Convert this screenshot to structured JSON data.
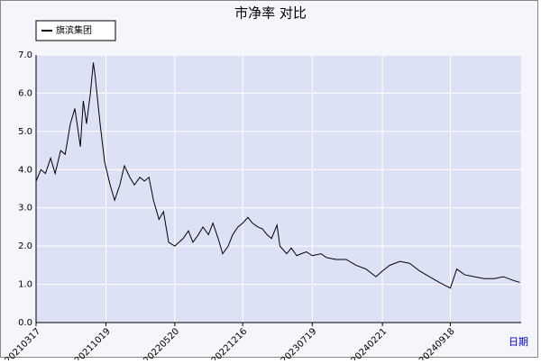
{
  "chart_data": {
    "type": "line",
    "title": "市净率  对比",
    "x_label": "日期",
    "x": [
      "20210317",
      "20210401",
      "20210415",
      "20210501",
      "20210515",
      "20210601",
      "20210615",
      "20210701",
      "20210715",
      "20210801",
      "20210810",
      "20210820",
      "20210901",
      "20210910",
      "20210915",
      "20211001",
      "20211015",
      "20211101",
      "20211115",
      "20211201",
      "20211215",
      "20220101",
      "20220115",
      "20220201",
      "20220215",
      "20220301",
      "20220315",
      "20220401",
      "20220415",
      "20220501",
      "20220520",
      "20220615",
      "20220701",
      "20220715",
      "20220801",
      "20220815",
      "20220901",
      "20220915",
      "20221001",
      "20221015",
      "20221101",
      "20221115",
      "20221201",
      "20221216",
      "20230101",
      "20230115",
      "20230201",
      "20230215",
      "20230301",
      "20230315",
      "20230401",
      "20230410",
      "20230501",
      "20230515",
      "20230601",
      "20230615",
      "20230701",
      "20230719",
      "20230815",
      "20230901",
      "20231001",
      "20231101",
      "20231201",
      "20240101",
      "20240201",
      "20240221",
      "20240315",
      "20240415",
      "20240515",
      "20240615",
      "20240715",
      "20240815",
      "20240918",
      "20241008",
      "20241101",
      "20241201",
      "20250101",
      "20250201",
      "20250301",
      "20250401",
      "20250421"
    ],
    "series": [
      {
        "name": "旗滨集团",
        "color": "#000000",
        "values": [
          3.7,
          4.0,
          3.9,
          4.3,
          3.9,
          4.5,
          4.4,
          5.2,
          5.6,
          4.6,
          5.8,
          5.2,
          6.0,
          6.8,
          6.5,
          5.2,
          4.2,
          3.6,
          3.2,
          3.6,
          4.1,
          3.8,
          3.6,
          3.8,
          3.7,
          3.8,
          3.2,
          2.7,
          2.9,
          2.1,
          2.0,
          2.2,
          2.4,
          2.1,
          2.3,
          2.5,
          2.3,
          2.6,
          2.2,
          1.8,
          2.0,
          2.3,
          2.5,
          2.6,
          2.75,
          2.6,
          2.5,
          2.45,
          2.3,
          2.2,
          2.55,
          2.0,
          1.8,
          1.95,
          1.75,
          1.8,
          1.85,
          1.75,
          1.8,
          1.7,
          1.65,
          1.65,
          1.5,
          1.4,
          1.2,
          1.35,
          1.5,
          1.6,
          1.55,
          1.35,
          1.2,
          1.05,
          0.9,
          1.4,
          1.25,
          1.2,
          1.15,
          1.15,
          1.2,
          1.1,
          1.05
        ]
      }
    ],
    "xlim": [
      "20210317",
      "20250425"
    ],
    "xticks": [
      "20210317",
      "20211019",
      "20220520",
      "20221216",
      "20230719",
      "20240221",
      "20240918"
    ],
    "ylim": [
      0,
      7
    ],
    "yticks": [
      {
        "value": 0,
        "label": "0.0"
      },
      {
        "value": 1,
        "label": "1.0"
      },
      {
        "value": 2,
        "label": "2.0"
      },
      {
        "value": 3,
        "label": "3.0"
      },
      {
        "value": 4,
        "label": "4.0"
      },
      {
        "value": 5,
        "label": "5.0"
      },
      {
        "value": 6,
        "label": "6.0"
      },
      {
        "value": 7,
        "label": "7.0"
      }
    ],
    "grid": true,
    "legend": "top-left"
  }
}
